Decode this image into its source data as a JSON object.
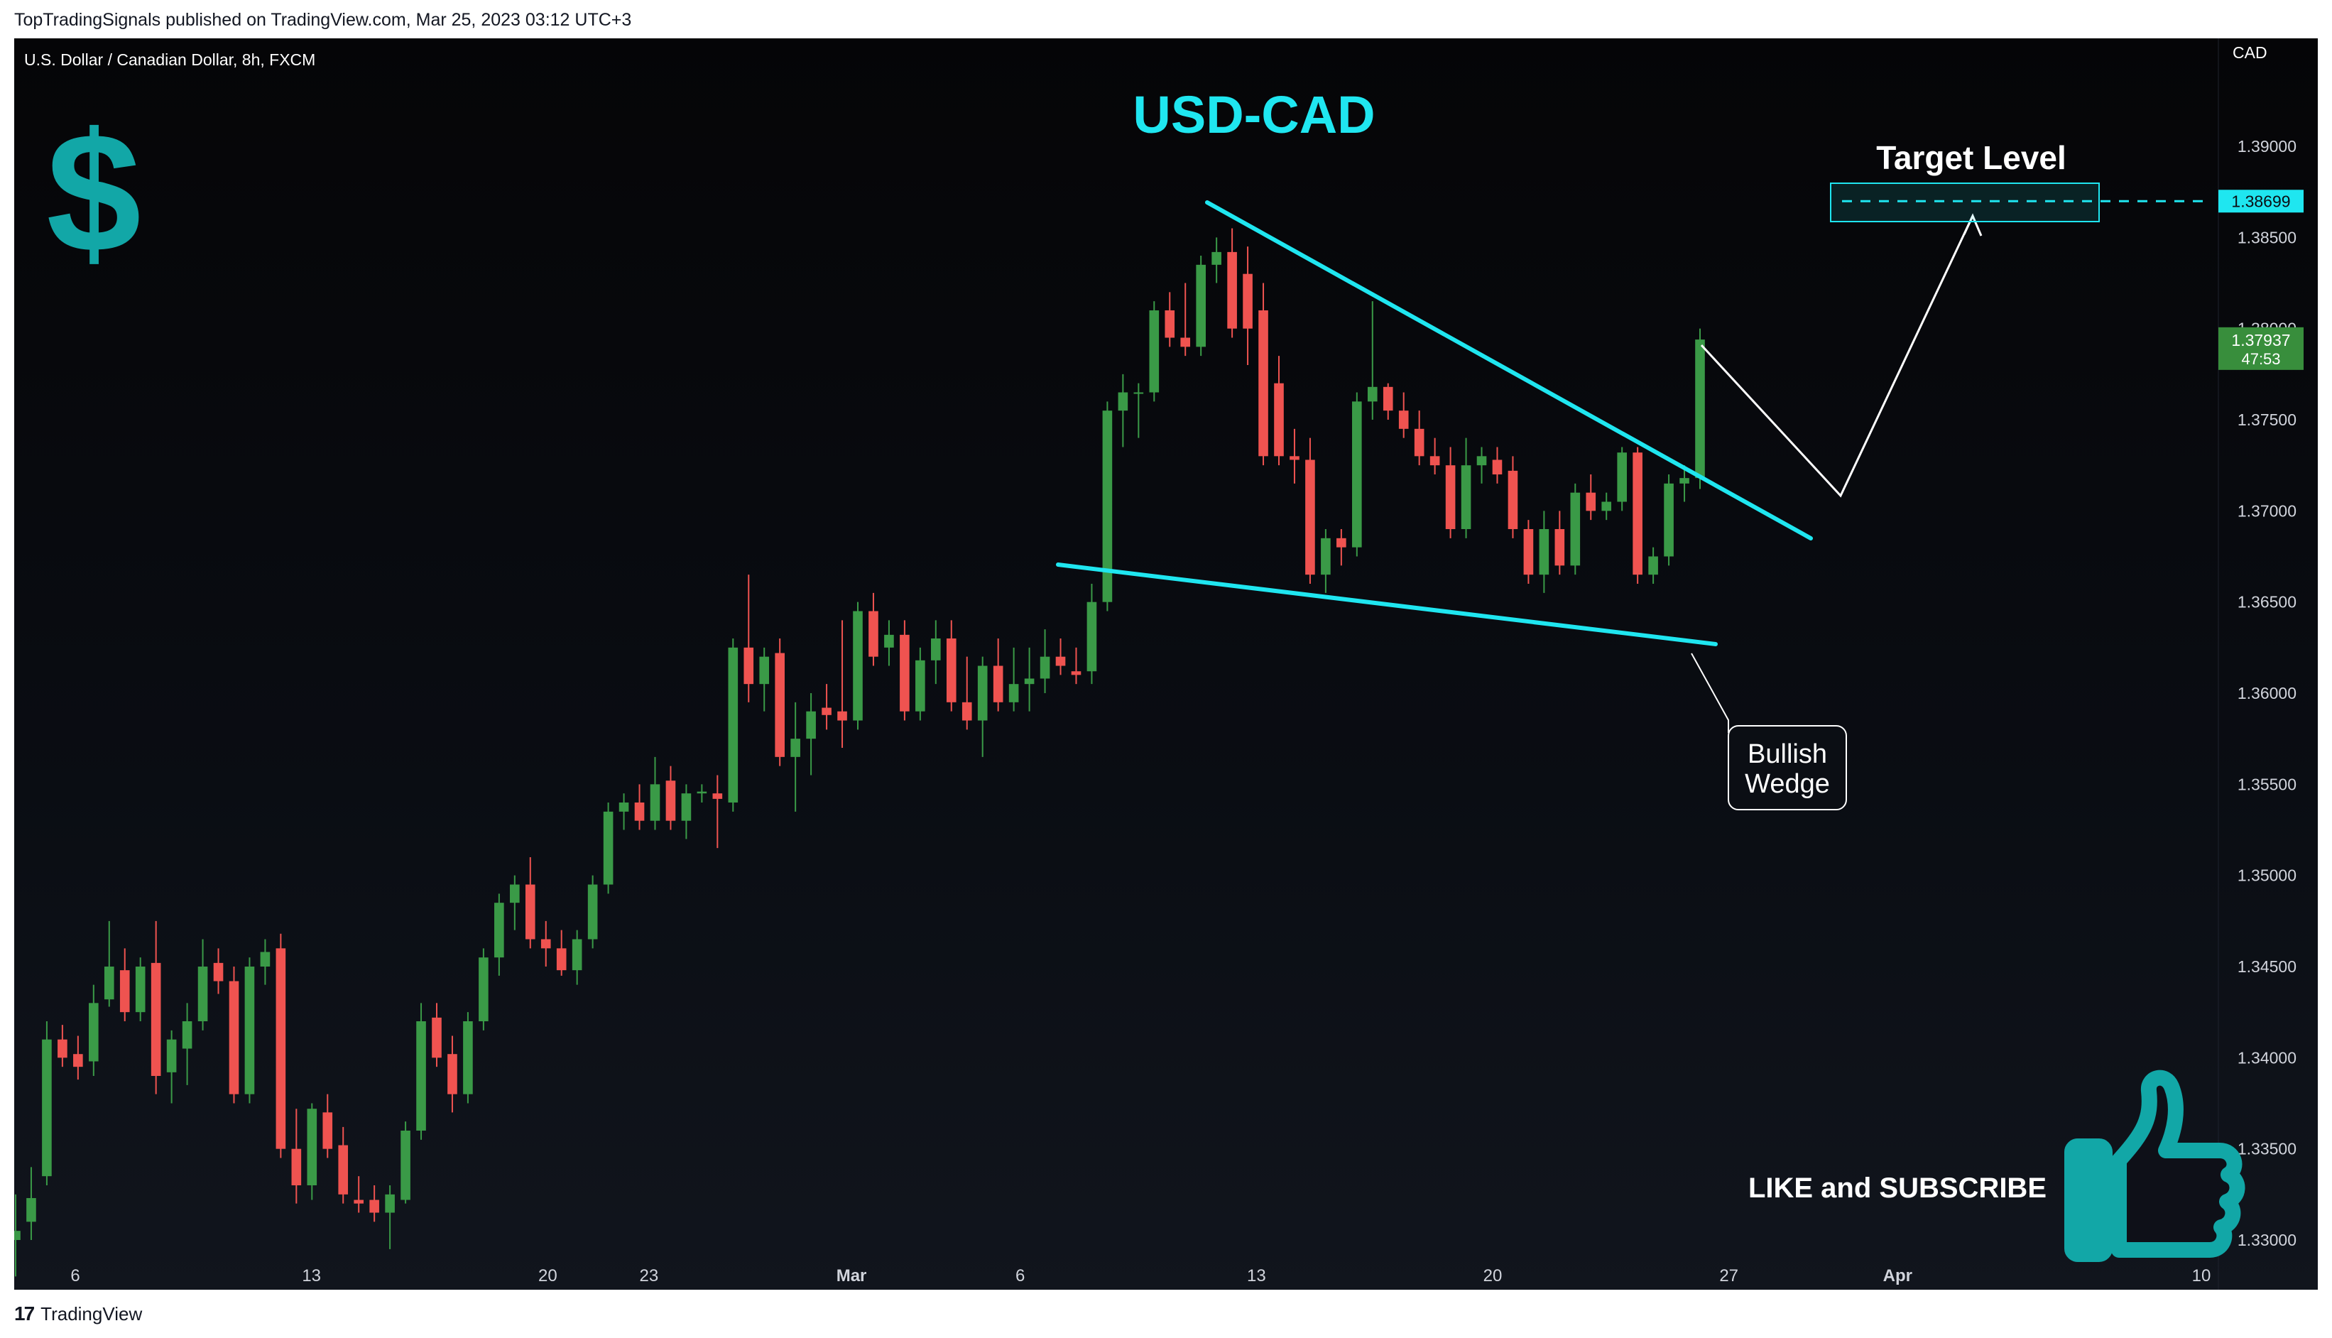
{
  "header": {
    "published_by": "TopTradingSignals published on TradingView.com, Mar 25, 2023 03:12 UTC+3"
  },
  "footer": {
    "brand": "TradingView",
    "brand_icon": "tradingview-logo-icon"
  },
  "chart_data": {
    "type": "candlestick",
    "symbol_line": "U.S. Dollar / Canadian Dollar, 8h, FXCM",
    "title": "USD-CAD",
    "currency": "CAD",
    "y_ticks": [
      "1.39000",
      "1.38500",
      "1.38000",
      "1.37500",
      "1.37000",
      "1.36500",
      "1.36000",
      "1.35500",
      "1.35000",
      "1.34500",
      "1.34000",
      "1.33500",
      "1.33000"
    ],
    "ylim": [
      1.3295,
      1.3955
    ],
    "x_ticks": [
      {
        "label": "6",
        "day": 6
      },
      {
        "label": "13",
        "day": 13
      },
      {
        "label": "20",
        "day": 20
      },
      {
        "label": "23",
        "day": 23
      },
      {
        "label": "Mar",
        "day": 29
      },
      {
        "label": "6",
        "day": 34
      },
      {
        "label": "13",
        "day": 41
      },
      {
        "label": "20",
        "day": 48
      },
      {
        "label": "27",
        "day": 55
      },
      {
        "label": "Apr",
        "day": 60
      },
      {
        "label": "10",
        "day": 69
      }
    ],
    "last_price": {
      "value": "1.37937",
      "countdown": "47:53",
      "color": "#388e3c"
    },
    "target": {
      "label": "Target Level",
      "value": "1.38699",
      "price": 1.38699,
      "color": "#1fe6f0"
    },
    "pattern_label": [
      "Bullish",
      "Wedge"
    ],
    "cta": "LIKE and SUBSCRIBE",
    "logo_icon": "dollar-sign-icon",
    "cta_icon": "thumbs-up-icon",
    "colors": {
      "up": "#26a69a",
      "up_body": "#3a9a47",
      "down": "#ef5350",
      "wedge": "#1fe6f0",
      "logo": "#12a7a7"
    },
    "candles": [
      [
        1.33,
        1.3325,
        1.328,
        1.3305
      ],
      [
        1.331,
        1.334,
        1.33,
        1.3323
      ],
      [
        1.3335,
        1.342,
        1.333,
        1.341
      ],
      [
        1.341,
        1.3418,
        1.3395,
        1.34
      ],
      [
        1.3402,
        1.3412,
        1.3388,
        1.3395
      ],
      [
        1.3398,
        1.344,
        1.339,
        1.343
      ],
      [
        1.3432,
        1.3475,
        1.3428,
        1.345
      ],
      [
        1.3448,
        1.346,
        1.342,
        1.3425
      ],
      [
        1.3425,
        1.3455,
        1.342,
        1.345
      ],
      [
        1.3452,
        1.3475,
        1.338,
        1.339
      ],
      [
        1.3392,
        1.3415,
        1.3375,
        1.341
      ],
      [
        1.3405,
        1.343,
        1.3385,
        1.342
      ],
      [
        1.342,
        1.3465,
        1.3415,
        1.345
      ],
      [
        1.3452,
        1.346,
        1.3435,
        1.3442
      ],
      [
        1.3442,
        1.345,
        1.3375,
        1.338
      ],
      [
        1.338,
        1.3455,
        1.3375,
        1.345
      ],
      [
        1.345,
        1.3465,
        1.344,
        1.3458
      ],
      [
        1.346,
        1.3468,
        1.3345,
        1.335
      ],
      [
        1.335,
        1.3372,
        1.332,
        1.333
      ],
      [
        1.333,
        1.3375,
        1.3322,
        1.3372
      ],
      [
        1.337,
        1.338,
        1.3345,
        1.335
      ],
      [
        1.3352,
        1.3362,
        1.332,
        1.3325
      ],
      [
        1.3322,
        1.3335,
        1.3315,
        1.332
      ],
      [
        1.3322,
        1.333,
        1.331,
        1.3315
      ],
      [
        1.3315,
        1.333,
        1.3295,
        1.3325
      ],
      [
        1.3322,
        1.3365,
        1.332,
        1.336
      ],
      [
        1.336,
        1.343,
        1.3355,
        1.342
      ],
      [
        1.3422,
        1.343,
        1.3395,
        1.34
      ],
      [
        1.3402,
        1.3412,
        1.337,
        1.338
      ],
      [
        1.338,
        1.3425,
        1.3375,
        1.342
      ],
      [
        1.342,
        1.346,
        1.3415,
        1.3455
      ],
      [
        1.3455,
        1.349,
        1.3445,
        1.3485
      ],
      [
        1.3485,
        1.35,
        1.347,
        1.3495
      ],
      [
        1.3495,
        1.351,
        1.346,
        1.3465
      ],
      [
        1.3465,
        1.3475,
        1.345,
        1.346
      ],
      [
        1.346,
        1.347,
        1.3445,
        1.3448
      ],
      [
        1.3448,
        1.347,
        1.344,
        1.3465
      ],
      [
        1.3465,
        1.35,
        1.346,
        1.3495
      ],
      [
        1.3495,
        1.354,
        1.349,
        1.3535
      ],
      [
        1.3535,
        1.3545,
        1.3525,
        1.354
      ],
      [
        1.354,
        1.355,
        1.3525,
        1.353
      ],
      [
        1.353,
        1.3565,
        1.3525,
        1.355
      ],
      [
        1.3552,
        1.356,
        1.3525,
        1.353
      ],
      [
        1.353,
        1.355,
        1.352,
        1.3545
      ],
      [
        1.3545,
        1.355,
        1.354,
        1.3546
      ],
      [
        1.3545,
        1.3555,
        1.3515,
        1.3542
      ],
      [
        1.354,
        1.363,
        1.3535,
        1.3625
      ],
      [
        1.3625,
        1.3665,
        1.3595,
        1.3605
      ],
      [
        1.3605,
        1.3625,
        1.359,
        1.362
      ],
      [
        1.3622,
        1.363,
        1.356,
        1.3565
      ],
      [
        1.3565,
        1.3595,
        1.3535,
        1.3575
      ],
      [
        1.3575,
        1.36,
        1.3555,
        1.359
      ],
      [
        1.3592,
        1.3605,
        1.358,
        1.3588
      ],
      [
        1.359,
        1.364,
        1.357,
        1.3585
      ],
      [
        1.3585,
        1.365,
        1.358,
        1.3645
      ],
      [
        1.3645,
        1.3655,
        1.3615,
        1.362
      ],
      [
        1.3625,
        1.364,
        1.3615,
        1.3632
      ],
      [
        1.3632,
        1.364,
        1.3585,
        1.359
      ],
      [
        1.359,
        1.3625,
        1.3585,
        1.3618
      ],
      [
        1.3618,
        1.364,
        1.3605,
        1.363
      ],
      [
        1.363,
        1.364,
        1.359,
        1.3595
      ],
      [
        1.3595,
        1.362,
        1.358,
        1.3585
      ],
      [
        1.3585,
        1.362,
        1.3565,
        1.3615
      ],
      [
        1.3615,
        1.363,
        1.359,
        1.3595
      ],
      [
        1.3595,
        1.3625,
        1.359,
        1.3605
      ],
      [
        1.3605,
        1.3625,
        1.359,
        1.3608
      ],
      [
        1.3608,
        1.3635,
        1.36,
        1.362
      ],
      [
        1.362,
        1.363,
        1.361,
        1.3615
      ],
      [
        1.3612,
        1.3625,
        1.3605,
        1.361
      ],
      [
        1.3612,
        1.366,
        1.3605,
        1.365
      ],
      [
        1.365,
        1.376,
        1.3645,
        1.3755
      ],
      [
        1.3755,
        1.3775,
        1.3735,
        1.3765
      ],
      [
        1.3765,
        1.377,
        1.374,
        1.3765
      ],
      [
        1.3765,
        1.3815,
        1.376,
        1.381
      ],
      [
        1.381,
        1.382,
        1.379,
        1.3795
      ],
      [
        1.3795,
        1.3825,
        1.3785,
        1.379
      ],
      [
        1.379,
        1.384,
        1.3785,
        1.3835
      ],
      [
        1.3835,
        1.385,
        1.3825,
        1.3842
      ],
      [
        1.3842,
        1.3855,
        1.3795,
        1.38
      ],
      [
        1.383,
        1.3845,
        1.378,
        1.38
      ],
      [
        1.381,
        1.3825,
        1.3725,
        1.373
      ],
      [
        1.377,
        1.3785,
        1.3725,
        1.373
      ],
      [
        1.373,
        1.3745,
        1.3715,
        1.3728
      ],
      [
        1.3728,
        1.374,
        1.366,
        1.3665
      ],
      [
        1.3665,
        1.369,
        1.3655,
        1.3685
      ],
      [
        1.3685,
        1.369,
        1.367,
        1.368
      ],
      [
        1.368,
        1.3765,
        1.3675,
        1.376
      ],
      [
        1.376,
        1.3815,
        1.375,
        1.3768
      ],
      [
        1.3768,
        1.377,
        1.375,
        1.3755
      ],
      [
        1.3755,
        1.3765,
        1.374,
        1.3745
      ],
      [
        1.3745,
        1.3755,
        1.3725,
        1.373
      ],
      [
        1.373,
        1.374,
        1.372,
        1.3725
      ],
      [
        1.3725,
        1.3735,
        1.3685,
        1.369
      ],
      [
        1.369,
        1.374,
        1.3685,
        1.3725
      ],
      [
        1.3725,
        1.3735,
        1.3715,
        1.373
      ],
      [
        1.3728,
        1.3735,
        1.3715,
        1.372
      ],
      [
        1.3722,
        1.373,
        1.3685,
        1.369
      ],
      [
        1.369,
        1.3695,
        1.366,
        1.3665
      ],
      [
        1.3665,
        1.37,
        1.3655,
        1.369
      ],
      [
        1.369,
        1.37,
        1.3665,
        1.367
      ],
      [
        1.367,
        1.3715,
        1.3665,
        1.371
      ],
      [
        1.371,
        1.372,
        1.3695,
        1.37
      ],
      [
        1.37,
        1.371,
        1.3695,
        1.3705
      ],
      [
        1.3705,
        1.3735,
        1.37,
        1.3732
      ],
      [
        1.3732,
        1.3735,
        1.366,
        1.3665
      ],
      [
        1.3665,
        1.368,
        1.366,
        1.3675
      ],
      [
        1.3675,
        1.372,
        1.367,
        1.3715
      ],
      [
        1.3715,
        1.3725,
        1.3705,
        1.3718
      ],
      [
        1.3718,
        1.38,
        1.3712,
        1.3794
      ]
    ]
  }
}
